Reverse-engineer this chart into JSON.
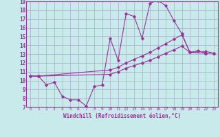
{
  "xlabel": "Windchill (Refroidissement éolien,°C)",
  "background_color": "#c8eaea",
  "line_color": "#993399",
  "grid_color": "#aaaacc",
  "xlim": [
    -0.5,
    23.5
  ],
  "ylim": [
    7,
    19
  ],
  "xticks": [
    0,
    1,
    2,
    3,
    4,
    5,
    6,
    7,
    8,
    9,
    10,
    11,
    12,
    13,
    14,
    15,
    16,
    17,
    18,
    19,
    20,
    21,
    22,
    23
  ],
  "yticks": [
    7,
    8,
    9,
    10,
    11,
    12,
    13,
    14,
    15,
    16,
    17,
    18,
    19
  ],
  "line1_x": [
    0,
    1,
    2,
    3,
    4,
    5,
    6,
    7,
    8,
    9,
    10,
    11,
    12,
    13,
    14,
    15,
    16,
    17,
    18,
    19,
    20,
    21,
    22
  ],
  "line1_y": [
    10.5,
    10.5,
    9.5,
    9.8,
    8.2,
    7.8,
    7.8,
    7.1,
    9.3,
    9.5,
    14.8,
    12.3,
    17.6,
    17.3,
    14.8,
    18.8,
    19.1,
    18.5,
    16.8,
    15.3,
    13.2,
    13.4,
    13.1
  ],
  "line2_x": [
    0,
    1,
    10,
    11,
    12,
    13,
    14,
    15,
    16,
    17,
    18,
    19,
    20,
    22,
    23
  ],
  "line2_y": [
    10.5,
    10.5,
    11.2,
    11.5,
    12.0,
    12.4,
    12.8,
    13.2,
    13.7,
    14.2,
    14.7,
    15.2,
    13.2,
    13.3,
    13.1
  ],
  "line3_x": [
    0,
    1,
    10,
    11,
    12,
    13,
    14,
    15,
    16,
    17,
    18,
    19,
    20,
    22,
    23
  ],
  "line3_y": [
    10.5,
    10.5,
    10.7,
    11.0,
    11.4,
    11.7,
    12.0,
    12.3,
    12.7,
    13.1,
    13.5,
    13.9,
    13.2,
    13.1,
    13.1
  ]
}
